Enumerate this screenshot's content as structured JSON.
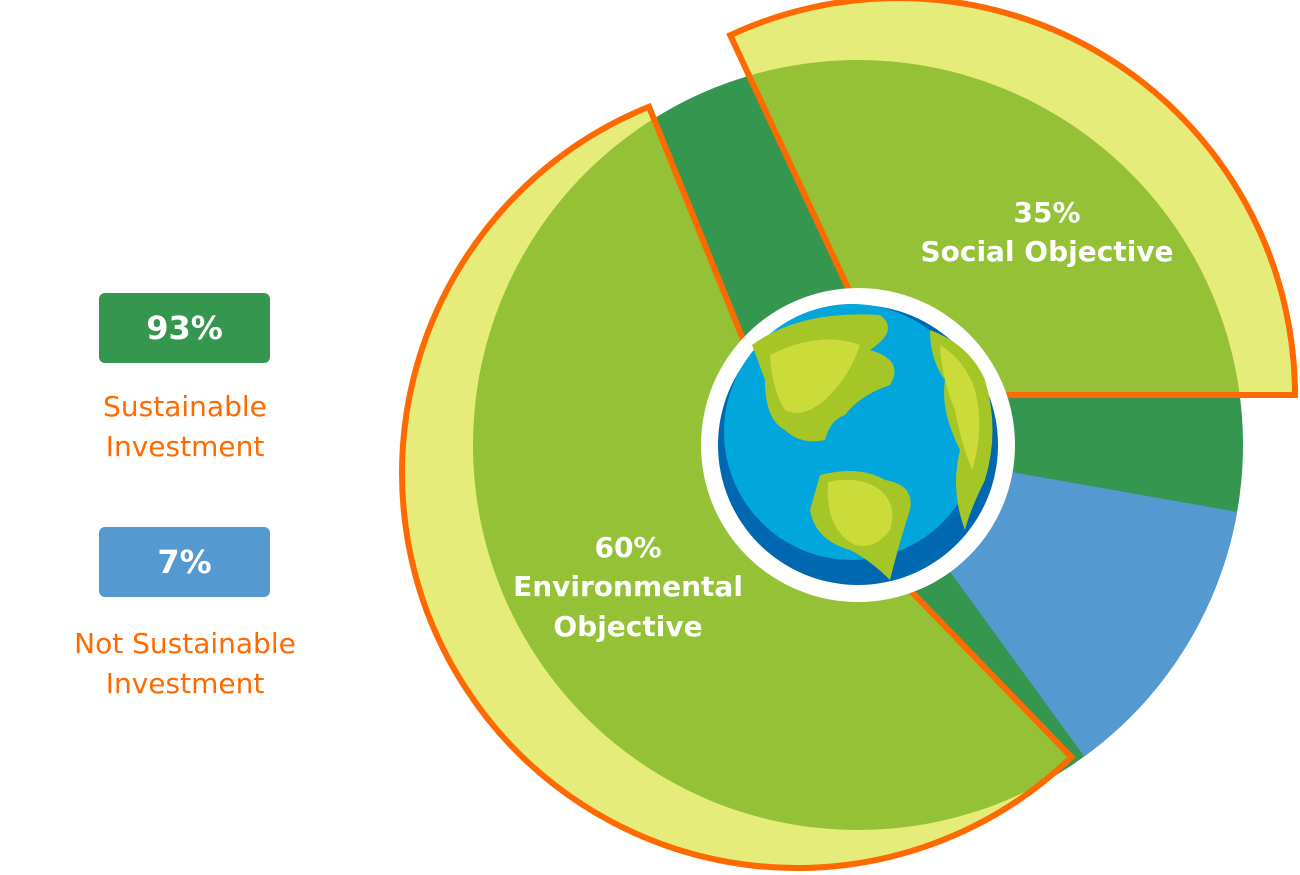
{
  "colors": {
    "sustainable": "#359650",
    "not_sustainable": "#5599d1",
    "inner_green": "#95c136",
    "outer_yellow": "#e6ec7a",
    "outline": "#ff6a00",
    "legend_text": "#ff6a00"
  },
  "legend": [
    {
      "value": "93%",
      "label": "Sustainable Investment"
    },
    {
      "value": "7%",
      "label": "Not Sustainable Investment"
    }
  ],
  "chart_data": {
    "type": "pie",
    "slices": [
      {
        "label": "Sustainable Investment",
        "value": 93,
        "color": "#359650"
      },
      {
        "label": "Not Sustainable Investment",
        "value": 7,
        "color": "#5599d1"
      }
    ],
    "sub_slices": [
      {
        "label_value": "60%",
        "label": "Environmental Objective",
        "value": 60,
        "parent": "Sustainable Investment"
      },
      {
        "label_value": "35%",
        "label": "Social Objective",
        "value": 35,
        "parent": "Sustainable Investment"
      }
    ],
    "center_icon": "globe-icon"
  }
}
